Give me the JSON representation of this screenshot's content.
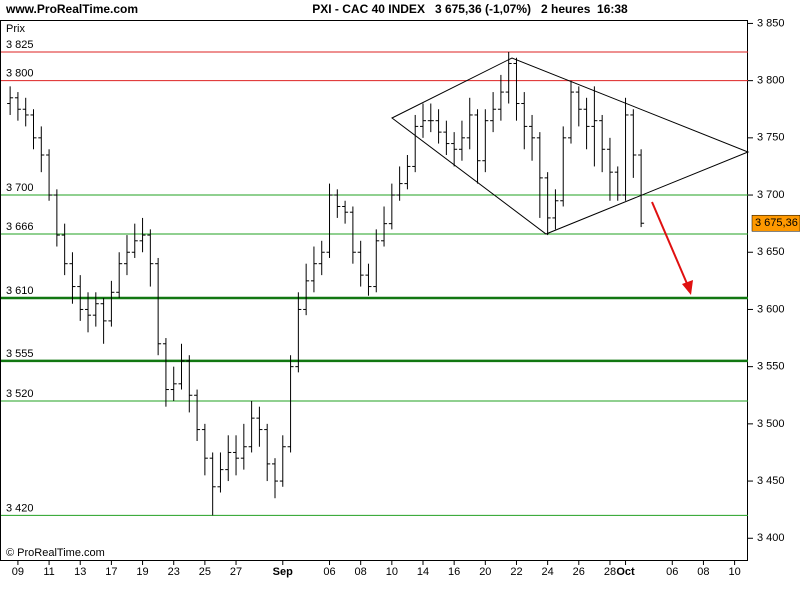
{
  "header": {
    "site": "www.ProRealTime.com",
    "title": "PXI - CAC 40 INDEX   3 675,36 (-1,07%)   2 heures  16:38",
    "footer": "© ProRealTime.com"
  },
  "chart_data": {
    "type": "ohlc",
    "y_label": "Prix",
    "categories": [
      null,
      "09",
      null,
      null,
      null,
      "11",
      null,
      null,
      null,
      "13",
      null,
      null,
      null,
      "17",
      null,
      null,
      null,
      "19",
      null,
      null,
      null,
      "23",
      null,
      null,
      null,
      "25",
      null,
      null,
      null,
      "27",
      null,
      null,
      null,
      null,
      null,
      "Sep",
      null,
      null,
      null,
      null,
      null,
      "06",
      null,
      null,
      null,
      "08",
      null,
      null,
      null,
      "10",
      null,
      null,
      null,
      "14",
      null,
      null,
      null,
      "16",
      null,
      null,
      null,
      "20",
      null,
      null,
      null,
      "22",
      null,
      null,
      null,
      "24",
      null,
      null,
      null,
      "26",
      null,
      null,
      null,
      "28",
      null,
      "Oct",
      null,
      null,
      null,
      null,
      null,
      "06",
      null,
      null,
      null,
      "08",
      null,
      null,
      null,
      "10",
      null
    ],
    "series": [
      {
        "color": "#000000",
        "open": [
          3780,
          3785,
          3775,
          3770,
          3750,
          3735,
          3700,
          3665,
          3640,
          3620,
          3600,
          3595,
          3605,
          3590,
          3615,
          3640,
          3650,
          3660,
          3665,
          3640,
          3570,
          3530,
          3535,
          3555,
          3525,
          3495,
          3470,
          3445,
          3460,
          3475,
          3470,
          3480,
          3505,
          3495,
          3465,
          3450,
          3480,
          3550,
          3600,
          3625,
          3640,
          3650,
          3700,
          3690,
          3685,
          3650,
          3630,
          3620,
          3660,
          3675,
          3700,
          3710,
          3725,
          3760,
          3765,
          3765,
          3755,
          3745,
          3740,
          3750,
          3770,
          3730,
          3765,
          3775,
          3790,
          3815,
          3780,
          3760,
          3750,
          3715,
          3680,
          3695,
          3750,
          3790,
          3775,
          3760,
          3765,
          3740,
          3720,
          3700,
          3770,
          3735,
          null,
          null,
          null,
          null,
          null,
          null,
          null,
          null,
          null,
          null,
          null,
          null,
          null
        ],
        "high": [
          3795,
          3790,
          3785,
          3775,
          3760,
          3740,
          3705,
          3675,
          3650,
          3630,
          3615,
          3615,
          3610,
          3625,
          3650,
          3665,
          3675,
          3680,
          3670,
          3645,
          3575,
          3550,
          3570,
          3560,
          3530,
          3500,
          3475,
          3475,
          3490,
          3490,
          3500,
          3520,
          3515,
          3500,
          3470,
          3490,
          3560,
          3615,
          3640,
          3655,
          3660,
          3710,
          3705,
          3695,
          3690,
          3660,
          3640,
          3670,
          3690,
          3710,
          3725,
          3735,
          3770,
          3780,
          3780,
          3775,
          3765,
          3755,
          3765,
          3785,
          3775,
          3775,
          3790,
          3805,
          3825,
          3820,
          3790,
          3770,
          3755,
          3720,
          3705,
          3760,
          3800,
          3795,
          3785,
          3795,
          3770,
          3750,
          3725,
          3785,
          3775,
          3740,
          null,
          null,
          null,
          null,
          null,
          null,
          null,
          null,
          null,
          null,
          null,
          null,
          null
        ],
        "low": [
          3770,
          3765,
          3760,
          3740,
          3720,
          3695,
          3655,
          3630,
          3605,
          3590,
          3580,
          3585,
          3570,
          3585,
          3610,
          3630,
          3645,
          3650,
          3620,
          3560,
          3515,
          3520,
          3530,
          3510,
          3485,
          3455,
          3420,
          3440,
          3450,
          3455,
          3460,
          3475,
          3480,
          3450,
          3435,
          3445,
          3475,
          3545,
          3595,
          3615,
          3630,
          3645,
          3680,
          3675,
          3640,
          3620,
          3612,
          3615,
          3655,
          3670,
          3695,
          3705,
          3720,
          3750,
          3755,
          3745,
          3735,
          3725,
          3730,
          3740,
          3710,
          3720,
          3755,
          3765,
          3780,
          3765,
          3740,
          3730,
          3680,
          3665,
          3670,
          3690,
          3745,
          3760,
          3740,
          3725,
          3720,
          3695,
          3695,
          3695,
          3715,
          3672,
          null,
          null,
          null,
          null,
          null,
          null,
          null,
          null,
          null,
          null,
          null,
          null,
          null
        ],
        "close": [
          3785,
          3775,
          3770,
          3750,
          3735,
          3700,
          3665,
          3640,
          3620,
          3600,
          3595,
          3605,
          3590,
          3615,
          3640,
          3650,
          3660,
          3665,
          3640,
          3570,
          3530,
          3535,
          3555,
          3525,
          3495,
          3470,
          3445,
          3460,
          3475,
          3470,
          3480,
          3505,
          3495,
          3465,
          3450,
          3480,
          3550,
          3600,
          3625,
          3640,
          3650,
          3700,
          3690,
          3685,
          3650,
          3630,
          3620,
          3660,
          3675,
          3700,
          3710,
          3725,
          3760,
          3765,
          3765,
          3755,
          3745,
          3740,
          3750,
          3770,
          3730,
          3765,
          3775,
          3790,
          3815,
          3780,
          3760,
          3750,
          3715,
          3680,
          3695,
          3750,
          3790,
          3775,
          3760,
          3765,
          3740,
          3720,
          3700,
          3770,
          3735,
          3675.36,
          null,
          null,
          null,
          null,
          null,
          null,
          null,
          null,
          null,
          null,
          null,
          null,
          null
        ]
      }
    ],
    "ylim": [
      3381,
      3853
    ],
    "yticks": [
      {
        "value": 3850,
        "label": "3 850"
      },
      {
        "value": 3800,
        "label": "3 800"
      },
      {
        "value": 3750,
        "label": "3 750"
      },
      {
        "value": 3700,
        "label": "3 700"
      },
      {
        "value": 3650,
        "label": "3 650"
      },
      {
        "value": 3600,
        "label": "3 600"
      },
      {
        "value": 3550,
        "label": "3 550"
      },
      {
        "value": 3500,
        "label": "3 500"
      },
      {
        "value": 3450,
        "label": "3 450"
      },
      {
        "value": 3400,
        "label": "3 400"
      }
    ],
    "levels": [
      {
        "value": 3825,
        "label": "3 825",
        "color": "#dd2222",
        "line_width": 1
      },
      {
        "value": 3800,
        "label": "3 800",
        "color": "#dd2222",
        "line_width": 1
      },
      {
        "value": 3700,
        "label": "3 700",
        "color": "#22a022",
        "line_width": 1
      },
      {
        "value": 3666,
        "label": "3 666",
        "color": "#22a022",
        "line_width": 1
      },
      {
        "value": 3610,
        "label": "3 610",
        "color": "#117711",
        "line_width": 2.5
      },
      {
        "value": 3555,
        "label": "3 555",
        "color": "#117711",
        "line_width": 2.5
      },
      {
        "value": 3520,
        "label": "3 520",
        "color": "#22a022",
        "line_width": 1
      },
      {
        "value": 3420,
        "label": "3 420",
        "color": "#22a022",
        "line_width": 1
      }
    ],
    "last_price": {
      "value": 3675.36,
      "label": "3 675,36",
      "color": "#ff9900"
    }
  }
}
